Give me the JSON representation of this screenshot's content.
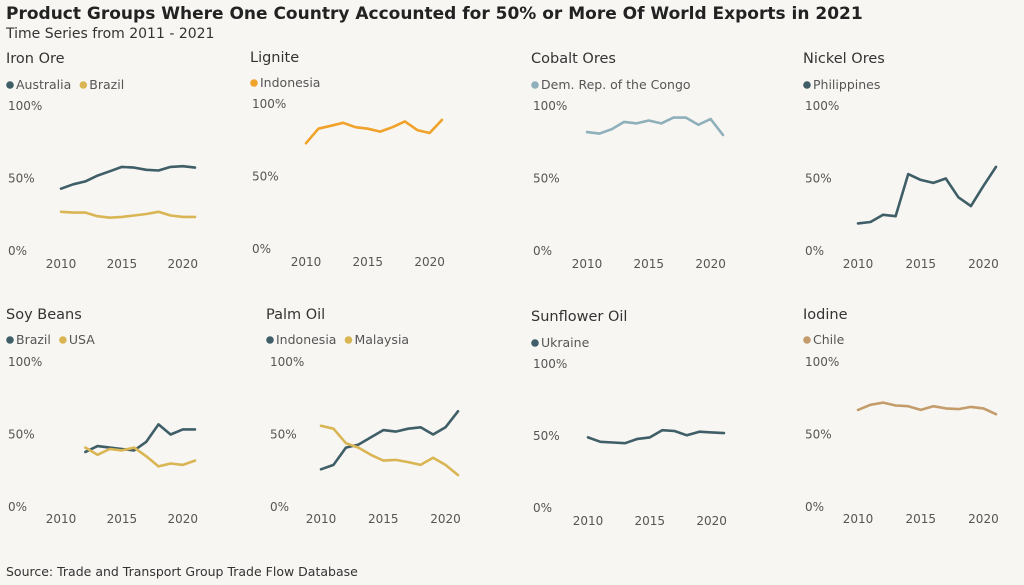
{
  "header": {
    "title": "Product Groups Where One Country Accounted for 50% or More Of World Exports in 2021",
    "subtitle": "Time Series from 2011 - 2021"
  },
  "footer": {
    "source": "Source: Trade and Transport Group Trade Flow Database"
  },
  "colors": {
    "dark_teal": "#3f5e68",
    "gold": "#d9b554",
    "orange": "#f0a22a",
    "light_teal": "#8fb0bb",
    "tan": "#c49c6c",
    "background": "#f7f6f2"
  },
  "chart_data": [
    {
      "type": "line",
      "title": "Iron Ore",
      "ylim": [
        0,
        100
      ],
      "yticks": [
        "0%",
        "50%",
        "100%"
      ],
      "xticks": [
        "2010",
        "2015",
        "2020"
      ],
      "series": [
        {
          "name": "Australia",
          "color": "#3f5e68",
          "x": [
            2010,
            2011,
            2012,
            2013,
            2014,
            2015,
            2016,
            2017,
            2018,
            2019,
            2020,
            2021
          ],
          "y": [
            43,
            46,
            48,
            52,
            55,
            58,
            57.5,
            56,
            55.5,
            58,
            58.5,
            57.5
          ]
        },
        {
          "name": "Brazil",
          "color": "#d9b554",
          "x": [
            2010,
            2011,
            2012,
            2013,
            2014,
            2015,
            2016,
            2017,
            2018,
            2019,
            2020,
            2021
          ],
          "y": [
            27,
            26.5,
            26.5,
            24,
            23,
            23.5,
            24.5,
            25.5,
            27,
            24.5,
            23.5,
            23.5
          ]
        }
      ]
    },
    {
      "type": "line",
      "title": "Lignite",
      "ylim": [
        0,
        100
      ],
      "yticks": [
        "0%",
        "50%",
        "100%"
      ],
      "xticks": [
        "2010",
        "2015",
        "2020"
      ],
      "series": [
        {
          "name": "Indonesia",
          "color": "#f0a22a",
          "x": [
            2010,
            2011,
            2012,
            2013,
            2014,
            2015,
            2016,
            2017,
            2018,
            2019,
            2020,
            2021
          ],
          "y": [
            73,
            83,
            85,
            87,
            84,
            83,
            81,
            84,
            88,
            82,
            80,
            89
          ]
        }
      ]
    },
    {
      "type": "line",
      "title": "Cobalt Ores",
      "ylim": [
        0,
        100
      ],
      "yticks": [
        "0%",
        "50%",
        "100%"
      ],
      "xticks": [
        "2010",
        "2015",
        "2020"
      ],
      "series": [
        {
          "name": "Dem. Rep. of the Congo",
          "color": "#8fb0bb",
          "x": [
            2010,
            2011,
            2012,
            2013,
            2014,
            2015,
            2016,
            2017,
            2018,
            2019,
            2020,
            2021
          ],
          "y": [
            82,
            81,
            84,
            89,
            88,
            90,
            88,
            92,
            92,
            87,
            91,
            80
          ]
        }
      ]
    },
    {
      "type": "line",
      "title": "Nickel Ores",
      "ylim": [
        0,
        100
      ],
      "yticks": [
        "0%",
        "50%",
        "100%"
      ],
      "xticks": [
        "2010",
        "2015",
        "2020"
      ],
      "series": [
        {
          "name": "Philippines",
          "color": "#3f5e68",
          "x": [
            2010,
            2011,
            2012,
            2013,
            2014,
            2015,
            2016,
            2017,
            2018,
            2019,
            2020,
            2021
          ],
          "y": [
            19,
            20,
            25,
            24,
            53,
            49,
            47,
            50,
            37,
            31,
            45,
            58
          ]
        }
      ]
    },
    {
      "type": "line",
      "title": "Soy Beans",
      "ylim": [
        0,
        100
      ],
      "yticks": [
        "0%",
        "50%",
        "100%"
      ],
      "xticks": [
        "2010",
        "2015",
        "2020"
      ],
      "series": [
        {
          "name": "Brazil",
          "color": "#3f5e68",
          "x": [
            2012,
            2013,
            2014,
            2015,
            2016,
            2017,
            2018,
            2019,
            2020,
            2021
          ],
          "y": [
            38,
            42,
            41,
            40,
            39,
            45,
            57,
            50,
            53.5,
            53.5
          ]
        },
        {
          "name": "USA",
          "color": "#d9b554",
          "x": [
            2012,
            2013,
            2014,
            2015,
            2016,
            2017,
            2018,
            2019,
            2020,
            2021
          ],
          "y": [
            41,
            36,
            40,
            39,
            41,
            35,
            28,
            30,
            29,
            32
          ]
        }
      ]
    },
    {
      "type": "line",
      "title": "Palm Oil",
      "ylim": [
        0,
        100
      ],
      "yticks": [
        "0%",
        "50%",
        "100%"
      ],
      "xticks": [
        "2010",
        "2015",
        "2020"
      ],
      "series": [
        {
          "name": "Indonesia",
          "color": "#3f5e68",
          "x": [
            2010,
            2011,
            2012,
            2013,
            2014,
            2015,
            2016,
            2017,
            2018,
            2019,
            2020,
            2021
          ],
          "y": [
            26,
            29,
            41,
            43,
            48,
            53,
            52,
            54,
            55,
            50,
            55,
            66
          ]
        },
        {
          "name": "Malaysia",
          "color": "#d9b554",
          "x": [
            2010,
            2011,
            2012,
            2013,
            2014,
            2015,
            2016,
            2017,
            2018,
            2019,
            2020,
            2021
          ],
          "y": [
            56,
            54,
            44,
            41,
            36,
            32,
            32.5,
            31,
            29,
            34,
            29,
            22
          ]
        }
      ]
    },
    {
      "type": "line",
      "title": "Sunflower Oil",
      "ylim": [
        0,
        100
      ],
      "yticks": [
        "0%",
        "50%",
        "100%"
      ],
      "xticks": [
        "2010",
        "2015",
        "2020"
      ],
      "series": [
        {
          "name": "Ukraine",
          "color": "#3f5e68",
          "x": [
            2010,
            2011,
            2012,
            2013,
            2014,
            2015,
            2016,
            2017,
            2018,
            2019,
            2020,
            2021
          ],
          "y": [
            49,
            46,
            45.5,
            45,
            48,
            49,
            54,
            53.5,
            50.5,
            53,
            52.5,
            52
          ]
        }
      ]
    },
    {
      "type": "line",
      "title": "Iodine",
      "ylim": [
        0,
        100
      ],
      "yticks": [
        "0%",
        "50%",
        "100%"
      ],
      "xticks": [
        "2010",
        "2015",
        "2020"
      ],
      "series": [
        {
          "name": "Chile",
          "color": "#c49c6c",
          "x": [
            2010,
            2011,
            2012,
            2013,
            2014,
            2015,
            2016,
            2017,
            2018,
            2019,
            2020,
            2021
          ],
          "y": [
            67,
            70.5,
            72,
            70,
            69.5,
            67,
            69.5,
            68,
            67.5,
            69,
            68,
            64
          ]
        }
      ]
    }
  ]
}
